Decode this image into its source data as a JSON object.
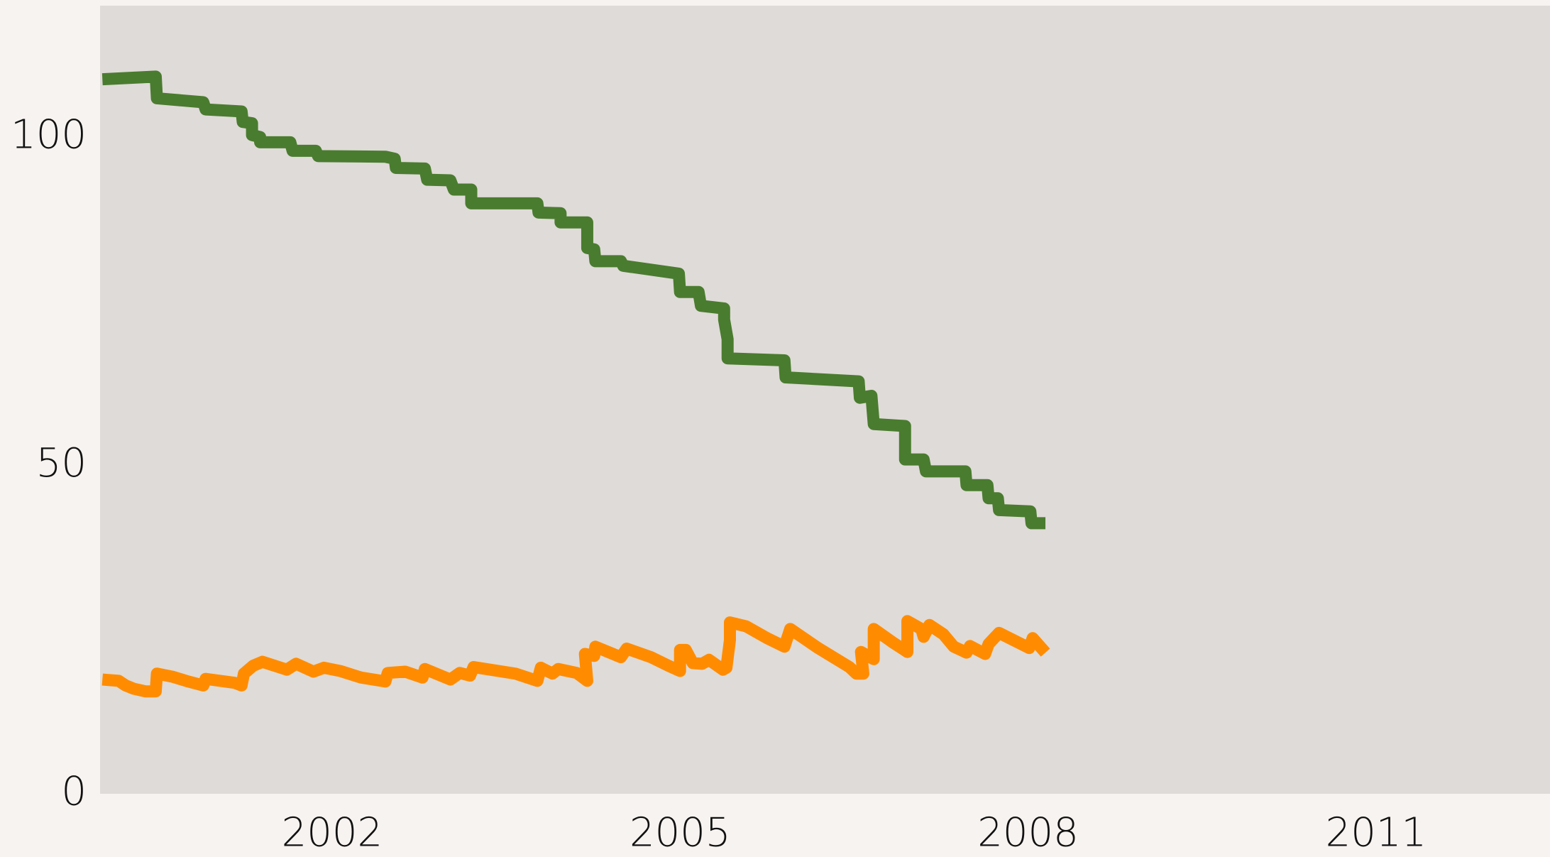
{
  "chart_data": {
    "type": "line",
    "xlim": [
      2000,
      2012.5
    ],
    "xticks": [
      2002,
      2005,
      2008,
      2011
    ],
    "ylim": [
      0,
      120
    ],
    "yticks": [
      0,
      50,
      100
    ],
    "series": [
      {
        "color": "#4a7c2f",
        "x": [
          2000.02,
          2000.48,
          2000.49,
          2000.89,
          2000.91,
          2001.22,
          2001.23,
          2001.31,
          2001.31,
          2001.38,
          2001.38,
          2001.64,
          2001.66,
          2001.86,
          2001.88,
          2002.46,
          2002.54,
          2002.55,
          2002.8,
          2002.82,
          2003.02,
          2003.05,
          2003.2,
          2003.2,
          2003.77,
          2003.78,
          2003.97,
          2003.97,
          2004.2,
          2004.2,
          2004.26,
          2004.27,
          2004.49,
          2004.51,
          2004.99,
          2005.0,
          2005.16,
          2005.18,
          2005.38,
          2005.38,
          2005.41,
          2005.41,
          2005.9,
          2005.91,
          2006.54,
          2006.55,
          2006.65,
          2006.67,
          2006.94,
          2006.94,
          2007.1,
          2007.12,
          2007.46,
          2007.47,
          2007.65,
          2007.66,
          2007.74,
          2007.75,
          2008.02,
          2008.03,
          2008.15
        ],
        "values": [
          108.8,
          109.2,
          105.9,
          105.3,
          104.2,
          103.9,
          102.3,
          102.1,
          100.3,
          100,
          99.2,
          99.2,
          97.9,
          97.9,
          97.1,
          97,
          96.7,
          95.3,
          95.2,
          93.5,
          93.4,
          92,
          92,
          89.9,
          89.9,
          88.5,
          88.4,
          87,
          87,
          83.1,
          82.9,
          81.1,
          81.1,
          80.4,
          79.2,
          76.4,
          76.4,
          74.3,
          73.9,
          72.2,
          69.2,
          66.3,
          66,
          63.4,
          62.8,
          60.3,
          60.6,
          56.3,
          56,
          50.9,
          50.9,
          49.1,
          49.1,
          47,
          47,
          45,
          45,
          43.2,
          43,
          41.2,
          41.2
        ]
      },
      {
        "color": "#ff8c00",
        "x": [
          2000.02,
          2000.16,
          2000.22,
          2000.29,
          2000.39,
          2000.48,
          2000.49,
          2000.63,
          2000.76,
          2000.89,
          2000.91,
          2001.16,
          2001.22,
          2001.24,
          2001.32,
          2001.4,
          2001.61,
          2001.69,
          2001.84,
          2001.93,
          2002.07,
          2002.25,
          2002.46,
          2002.48,
          2002.63,
          2002.78,
          2002.8,
          2003.02,
          2003.1,
          2003.19,
          2003.22,
          2003.58,
          2003.77,
          2003.8,
          2003.9,
          2003.95,
          2004.11,
          2004.2,
          2004.18,
          2004.26,
          2004.27,
          2004.49,
          2004.54,
          2004.75,
          2004.9,
          2005.0,
          2005.0,
          2005.05,
          2005.11,
          2005.19,
          2005.25,
          2005.37,
          2005.4,
          2005.43,
          2005.43,
          2005.57,
          2005.75,
          2005.9,
          2005.95,
          2006.19,
          2006.46,
          2006.52,
          2006.58,
          2006.56,
          2006.67,
          2006.67,
          2006.83,
          2006.96,
          2006.96,
          2007.08,
          2007.1,
          2007.15,
          2007.27,
          2007.36,
          2007.47,
          2007.5,
          2007.63,
          2007.66,
          2007.75,
          2008.01,
          2008.04,
          2008.15
        ],
        "values": [
          17.4,
          17.2,
          16.5,
          16,
          15.6,
          15.6,
          18.3,
          17.8,
          17.1,
          16.5,
          17.5,
          16.9,
          16.5,
          18.3,
          19.5,
          20.1,
          18.9,
          19.8,
          18.6,
          19.2,
          18.7,
          17.7,
          17.1,
          18.4,
          18.6,
          17.7,
          19,
          17.4,
          18.4,
          18,
          19.3,
          18.3,
          17.2,
          19.2,
          18.3,
          19,
          18.4,
          17.2,
          21.3,
          21,
          22.4,
          20.8,
          22.1,
          20.8,
          19.5,
          18.7,
          21.9,
          21.9,
          19.9,
          19.8,
          20.4,
          18.9,
          19.2,
          23.4,
          26.1,
          25.5,
          23.7,
          22.4,
          25.1,
          22.2,
          19.3,
          18.3,
          18.3,
          21.6,
          20.5,
          25.1,
          23.1,
          21.6,
          26.3,
          25.1,
          23.9,
          25.7,
          24.3,
          22.4,
          21.5,
          22.5,
          21.3,
          22.8,
          24.5,
          22.2,
          23.7,
          21.5
        ]
      }
    ]
  }
}
